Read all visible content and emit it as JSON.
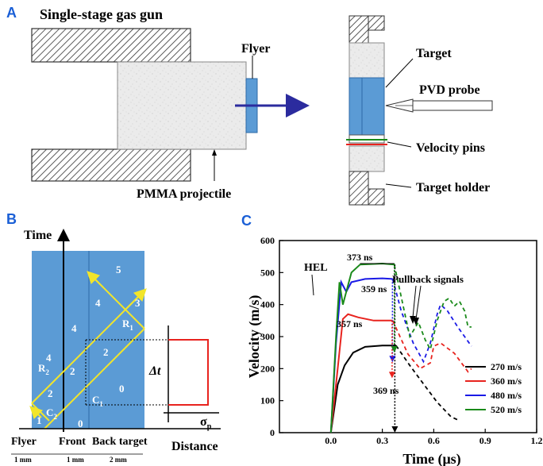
{
  "panels": {
    "a": {
      "letter": "A",
      "title": "Single-stage gas gun",
      "labels": {
        "flyer": "Flyer",
        "pmma": "PMMA projectile",
        "target": "Target",
        "pvd": "PVD probe",
        "velocity_pins": "Velocity pins",
        "target_holder": "Target holder"
      }
    },
    "b": {
      "letter": "B",
      "axis_time": "Time",
      "axis_distance": "Distance",
      "region_numbers": [
        "0",
        "0",
        "1",
        "2",
        "2",
        "2",
        "3",
        "4",
        "4",
        "4",
        "5"
      ],
      "wave_labels": {
        "C1": "C",
        "C1_sub": "1",
        "C2": "C",
        "C2_sub": "2",
        "R1": "R",
        "R1_sub": "1",
        "R2": "R",
        "R2_sub": "2"
      },
      "bottom_labels": [
        "Flyer",
        "Front",
        "Back target"
      ],
      "thickness_labels": [
        "1 mm",
        "1 mm",
        "2 mm"
      ],
      "delta_t": "Δt",
      "sigma": "σ",
      "sigma_sub": "p"
    },
    "c": {
      "letter": "C",
      "annotations": {
        "hel": "HEL",
        "pullback": "Pullback signals",
        "t373": "373 ns",
        "t359": "359 ns",
        "t357": "357 ns",
        "t369": "369 ns"
      }
    }
  },
  "chart_data": {
    "type": "line",
    "title": "",
    "xlabel": "Time (μs)",
    "ylabel": "Velocity (m/s)",
    "xlim": [
      -0.3,
      1.2
    ],
    "ylim": [
      0,
      600
    ],
    "xticks": [
      "0.0",
      "0.3",
      "0.6",
      "0.9",
      "1.2"
    ],
    "yticks": [
      "0",
      "100",
      "200",
      "300",
      "400",
      "500",
      "600"
    ],
    "legend_position": "bottom-right",
    "series": [
      {
        "name": "270 m/s",
        "color": "#000000",
        "solid": [
          [
            0.0,
            0
          ],
          [
            0.04,
            150
          ],
          [
            0.08,
            210
          ],
          [
            0.13,
            250
          ],
          [
            0.2,
            268
          ],
          [
            0.3,
            272
          ],
          [
            0.38,
            272
          ]
        ],
        "dashed": [
          [
            0.38,
            272
          ],
          [
            0.46,
            210
          ],
          [
            0.55,
            145
          ],
          [
            0.62,
            95
          ],
          [
            0.7,
            50
          ],
          [
            0.74,
            40
          ]
        ]
      },
      {
        "name": "360 m/s",
        "color": "#e8231e",
        "solid": [
          [
            0.0,
            0
          ],
          [
            0.04,
            200
          ],
          [
            0.07,
            355
          ],
          [
            0.1,
            370
          ],
          [
            0.16,
            360
          ],
          [
            0.25,
            350
          ],
          [
            0.36,
            350
          ]
        ],
        "dashed": [
          [
            0.36,
            350
          ],
          [
            0.45,
            245
          ],
          [
            0.52,
            200
          ],
          [
            0.58,
            218
          ],
          [
            0.6,
            270
          ],
          [
            0.64,
            280
          ],
          [
            0.72,
            248
          ],
          [
            0.8,
            190
          ],
          [
            0.82,
            200
          ]
        ]
      },
      {
        "name": "480 m/s",
        "color": "#1a1ae6",
        "solid": [
          [
            0.0,
            0
          ],
          [
            0.03,
            280
          ],
          [
            0.06,
            470
          ],
          [
            0.09,
            440
          ],
          [
            0.12,
            470
          ],
          [
            0.2,
            480
          ],
          [
            0.3,
            482
          ],
          [
            0.36,
            480
          ]
        ],
        "dashed": [
          [
            0.36,
            480
          ],
          [
            0.41,
            380
          ],
          [
            0.48,
            280
          ],
          [
            0.54,
            222
          ],
          [
            0.58,
            280
          ],
          [
            0.62,
            370
          ],
          [
            0.64,
            400
          ],
          [
            0.68,
            380
          ],
          [
            0.74,
            330
          ],
          [
            0.82,
            270
          ]
        ]
      },
      {
        "name": "520 m/s",
        "color": "#1a8a1a",
        "solid": [
          [
            0.0,
            0
          ],
          [
            0.03,
            300
          ],
          [
            0.05,
            470
          ],
          [
            0.07,
            400
          ],
          [
            0.09,
            440
          ],
          [
            0.12,
            500
          ],
          [
            0.17,
            525
          ],
          [
            0.3,
            528
          ],
          [
            0.37,
            525
          ]
        ],
        "dashed": [
          [
            0.37,
            525
          ],
          [
            0.42,
            400
          ],
          [
            0.46,
            300
          ],
          [
            0.51,
            345
          ],
          [
            0.55,
            290
          ],
          [
            0.58,
            260
          ],
          [
            0.62,
            350
          ],
          [
            0.66,
            410
          ],
          [
            0.69,
            420
          ],
          [
            0.72,
            395
          ],
          [
            0.75,
            410
          ],
          [
            0.78,
            380
          ],
          [
            0.8,
            330
          ],
          [
            0.82,
            330
          ]
        ]
      }
    ]
  },
  "colors": {
    "panel_letter": "#1a5fd6",
    "target_blue": "#5b9bd5",
    "gun_blue": "#5b9bd5",
    "arrow": "#2b2b9e",
    "wave": "#f2e52a",
    "region_text": "#ffffff",
    "pulse": "#e8231e"
  }
}
